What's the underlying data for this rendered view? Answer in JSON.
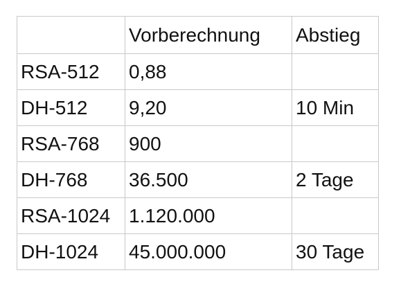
{
  "table": {
    "headers": [
      "",
      "Vorberechnung",
      "Abstieg"
    ],
    "rows": [
      [
        "RSA-512",
        "0,88",
        ""
      ],
      [
        "DH-512",
        "9,20",
        "10 Min"
      ],
      [
        "RSA-768",
        "900",
        ""
      ],
      [
        "DH-768",
        "36.500",
        "2 Tage"
      ],
      [
        "RSA-1024",
        "1.120.000",
        ""
      ],
      [
        "DH-1024",
        "45.000.000",
        "30 Tage"
      ]
    ]
  }
}
